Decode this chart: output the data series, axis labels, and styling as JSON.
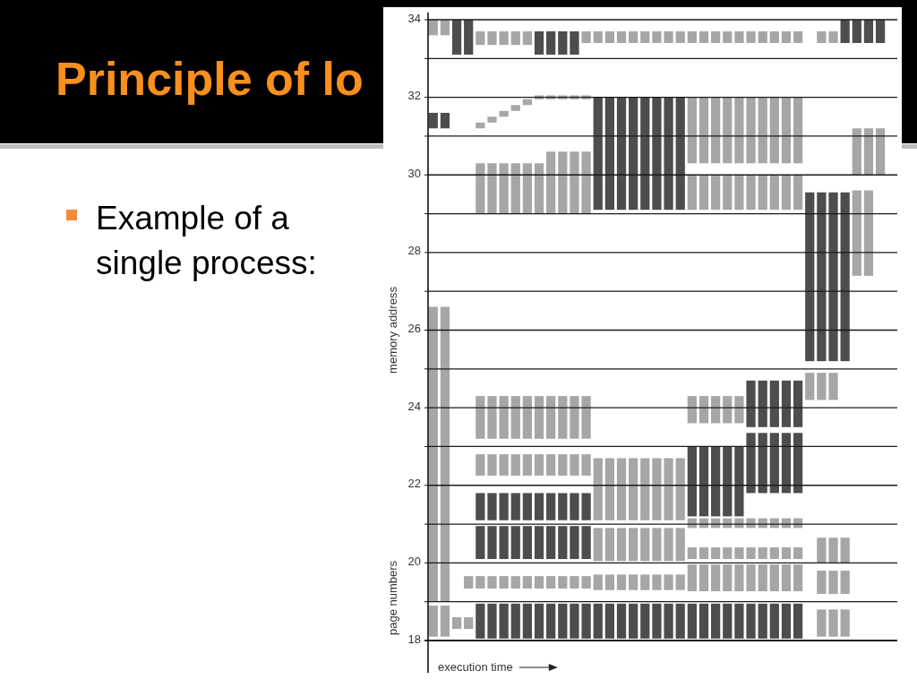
{
  "chart_data": {
    "type": "bar",
    "title": "Principle of lo",
    "subtitle": "Example of a single process:",
    "xlabel": "execution time",
    "ylabel": "memory address",
    "annotations": [
      "page numbers"
    ],
    "categories": [
      null,
      null,
      null,
      null,
      null,
      null,
      null,
      null,
      null,
      null,
      null,
      null,
      null,
      null,
      null,
      null,
      null,
      null,
      null,
      null,
      null,
      null,
      null,
      null,
      null,
      null,
      null,
      null,
      null,
      null,
      null,
      null,
      null,
      null,
      null,
      null,
      null,
      null,
      null,
      null
    ],
    "series": [
      {
        "color": "#4d4d4d",
        "values": [
          0.4,
          0.4,
          0.9,
          0.9,
          null,
          null,
          null,
          null,
          null,
          0.6,
          0.6,
          0.6,
          0.6,
          null,
          2.9,
          2.9,
          2.9,
          2.9,
          2.9,
          2.9,
          2.9,
          2.9,
          null,
          null,
          null,
          null,
          null,
          1.2,
          1.2,
          1.2,
          1.2,
          1.2,
          4.35,
          4.35,
          4.35,
          4.35,
          null,
          null,
          null,
          null
        ],
        "base": [
          31.2,
          31.2,
          33.1,
          33.1,
          null,
          null,
          null,
          null,
          null,
          33.1,
          33.1,
          33.1,
          33.1,
          null,
          29.1,
          29.1,
          29.1,
          29.1,
          29.1,
          29.1,
          29.1,
          29.1,
          null,
          null,
          null,
          null,
          null,
          23.5,
          23.5,
          23.5,
          23.5,
          23.5,
          25.2,
          25.2,
          25.2,
          25.2,
          null,
          null,
          null,
          null
        ]
      },
      {
        "color": "#4d4d4d",
        "values": [
          null,
          null,
          null,
          null,
          0.7,
          0.7,
          0.7,
          0.7,
          0.7,
          0.7,
          0.7,
          0.7,
          0.7,
          0.7,
          null,
          null,
          null,
          null,
          null,
          null,
          null,
          null,
          1.8,
          1.8,
          1.8,
          1.8,
          1.8,
          1.55,
          1.55,
          1.55,
          1.55,
          1.55,
          null,
          null,
          null,
          0.6,
          0.6,
          0.6,
          0.6,
          null
        ],
        "base": [
          null,
          null,
          null,
          null,
          21.1,
          21.1,
          21.1,
          21.1,
          21.1,
          21.1,
          21.1,
          21.1,
          21.1,
          21.1,
          null,
          null,
          null,
          null,
          null,
          null,
          null,
          null,
          21.2,
          21.2,
          21.2,
          21.2,
          21.2,
          21.8,
          21.8,
          21.8,
          21.8,
          21.8,
          null,
          null,
          null,
          33.4,
          33.4,
          33.4,
          33.4,
          null
        ]
      },
      {
        "color": "#4d4d4d",
        "values": [
          null,
          null,
          null,
          null,
          0.85,
          0.85,
          0.85,
          0.85,
          0.85,
          0.85,
          0.85,
          0.85,
          0.85,
          0.85,
          null,
          null,
          null,
          null,
          null,
          null,
          null,
          null,
          null,
          null,
          null,
          null,
          null,
          null,
          null,
          null,
          null,
          null,
          null,
          null,
          null,
          null,
          null,
          null,
          null,
          null
        ],
        "base": [
          null,
          null,
          null,
          null,
          20.1,
          20.1,
          20.1,
          20.1,
          20.1,
          20.1,
          20.1,
          20.1,
          20.1,
          20.1,
          null,
          null,
          null,
          null,
          null,
          null,
          null,
          null,
          null,
          null,
          null,
          null,
          null,
          null,
          null,
          null,
          null,
          null,
          null,
          null,
          null,
          null,
          null,
          null,
          null,
          null
        ]
      },
      {
        "color": "#4d4d4d",
        "values": [
          null,
          null,
          null,
          null,
          0.9,
          0.9,
          0.9,
          0.9,
          0.9,
          0.9,
          0.9,
          0.9,
          0.9,
          0.9,
          0.9,
          0.9,
          0.9,
          0.9,
          0.9,
          0.9,
          0.9,
          0.9,
          0.9,
          0.9,
          0.9,
          0.9,
          0.9,
          0.9,
          0.9,
          0.9,
          0.9,
          0.9,
          null,
          null,
          null,
          null,
          null,
          null,
          null,
          null
        ],
        "base": [
          null,
          null,
          null,
          null,
          18.05,
          18.05,
          18.05,
          18.05,
          18.05,
          18.05,
          18.05,
          18.05,
          18.05,
          18.05,
          18.05,
          18.05,
          18.05,
          18.05,
          18.05,
          18.05,
          18.05,
          18.05,
          18.05,
          18.05,
          18.05,
          18.05,
          18.05,
          18.05,
          18.05,
          18.05,
          18.05,
          18.05,
          null,
          null,
          null,
          null,
          null,
          null,
          null,
          null
        ]
      },
      {
        "color": "#a6a6a6",
        "values": [
          0.4,
          0.4,
          0.3,
          0.3,
          0.35,
          0.35,
          0.35,
          0.35,
          0.35,
          null,
          null,
          null,
          null,
          0.3,
          0.3,
          0.3,
          0.3,
          0.3,
          0.3,
          0.3,
          0.3,
          0.3,
          0.3,
          0.3,
          0.3,
          0.3,
          0.3,
          0.3,
          0.3,
          0.3,
          0.3,
          0.3,
          null,
          0.3,
          0.3,
          null,
          1.2,
          1.2,
          1.2,
          null
        ],
        "base": [
          33.6,
          33.6,
          18.3,
          18.3,
          33.35,
          33.35,
          33.35,
          33.35,
          33.35,
          null,
          null,
          null,
          null,
          33.4,
          33.4,
          33.4,
          33.4,
          33.4,
          33.4,
          33.4,
          33.4,
          33.4,
          33.4,
          33.4,
          33.4,
          33.4,
          33.4,
          33.4,
          33.4,
          33.4,
          33.4,
          33.4,
          null,
          33.4,
          33.4,
          null,
          30.0,
          30.0,
          30.0,
          null
        ]
      },
      {
        "color": "#a6a6a6",
        "values": [
          7.6,
          7.6,
          null,
          null,
          0.15,
          0.15,
          0.15,
          0.15,
          0.15,
          0.1,
          0.1,
          0.1,
          0.1,
          0.1,
          null,
          null,
          null,
          null,
          null,
          null,
          null,
          null,
          1.7,
          1.7,
          1.7,
          1.7,
          1.7,
          1.7,
          1.7,
          1.7,
          1.7,
          1.7,
          0.7,
          0.7,
          0.7,
          null,
          2.2,
          2.2,
          null,
          null
        ],
        "base": [
          19.0,
          19.0,
          null,
          null,
          31.2,
          31.35,
          31.5,
          31.65,
          31.8,
          31.95,
          31.95,
          31.95,
          31.95,
          31.95,
          null,
          null,
          null,
          null,
          null,
          null,
          null,
          null,
          30.3,
          30.3,
          30.3,
          30.3,
          30.3,
          30.3,
          30.3,
          30.3,
          30.3,
          30.3,
          24.2,
          24.2,
          24.2,
          null,
          27.4,
          27.4,
          null,
          null
        ]
      },
      {
        "color": "#a6a6a6",
        "values": [
          0.8,
          0.8,
          null,
          null,
          1.3,
          1.3,
          1.3,
          1.3,
          1.3,
          1.3,
          1.6,
          1.6,
          1.6,
          1.6,
          1.6,
          1.6,
          1.6,
          1.6,
          1.6,
          1.6,
          1.6,
          1.6,
          0.9,
          0.9,
          0.9,
          0.9,
          0.9,
          0.9,
          0.9,
          0.9,
          0.9,
          0.9,
          null,
          0.65,
          0.65,
          0.65,
          null,
          null,
          null,
          null
        ],
        "base": [
          18.1,
          18.1,
          null,
          null,
          29.0,
          29.0,
          29.0,
          29.0,
          29.0,
          29.0,
          29.0,
          29.0,
          29.0,
          29.0,
          21.1,
          21.1,
          21.1,
          21.1,
          21.1,
          21.1,
          21.1,
          21.1,
          29.1,
          29.1,
          29.1,
          29.1,
          29.1,
          29.1,
          29.1,
          29.1,
          29.1,
          29.1,
          null,
          20.0,
          20.0,
          20.0,
          null,
          null,
          null,
          null
        ]
      },
      {
        "color": "#a6a6a6",
        "values": [
          null,
          null,
          null,
          null,
          1.1,
          1.1,
          1.1,
          1.1,
          1.1,
          1.1,
          1.1,
          1.1,
          1.1,
          1.1,
          0.85,
          0.85,
          0.85,
          0.85,
          0.85,
          0.85,
          0.85,
          0.85,
          0.7,
          0.7,
          0.7,
          0.7,
          0.7,
          null,
          null,
          null,
          null,
          null,
          null,
          0.6,
          0.6,
          0.6,
          null,
          null,
          null,
          null
        ],
        "base": [
          null,
          null,
          null,
          null,
          23.2,
          23.2,
          23.2,
          23.2,
          23.2,
          23.2,
          23.2,
          23.2,
          23.2,
          23.2,
          20.05,
          20.05,
          20.05,
          20.05,
          20.05,
          20.05,
          20.05,
          20.05,
          23.6,
          23.6,
          23.6,
          23.6,
          23.6,
          null,
          null,
          null,
          null,
          null,
          null,
          19.2,
          19.2,
          19.2,
          null,
          null,
          null,
          null
        ]
      },
      {
        "color": "#a6a6a6",
        "values": [
          null,
          null,
          null,
          null,
          0.55,
          0.55,
          0.55,
          0.55,
          0.55,
          0.55,
          0.55,
          0.55,
          0.55,
          0.55,
          0.4,
          0.4,
          0.4,
          0.4,
          0.4,
          0.4,
          0.4,
          0.4,
          0.25,
          0.25,
          0.25,
          0.25,
          0.25,
          0.25,
          0.25,
          0.25,
          0.25,
          0.25,
          null,
          0.7,
          0.7,
          0.7,
          null,
          null,
          null,
          null
        ],
        "base": [
          null,
          null,
          null,
          null,
          22.25,
          22.25,
          22.25,
          22.25,
          22.25,
          22.25,
          22.25,
          22.25,
          22.25,
          22.25,
          19.3,
          19.3,
          19.3,
          19.3,
          19.3,
          19.3,
          19.3,
          19.3,
          20.9,
          20.9,
          20.9,
          20.9,
          20.9,
          20.9,
          20.9,
          20.9,
          20.9,
          20.9,
          null,
          18.1,
          18.1,
          18.1,
          null,
          null,
          null,
          null
        ]
      },
      {
        "color": "#a6a6a6",
        "values": [
          null,
          null,
          null,
          0.32,
          0.32,
          0.32,
          0.32,
          0.32,
          0.32,
          0.32,
          0.32,
          0.32,
          0.32,
          0.32,
          null,
          null,
          null,
          null,
          null,
          null,
          null,
          null,
          0.3,
          0.3,
          0.3,
          0.3,
          0.3,
          0.3,
          0.3,
          0.3,
          0.3,
          0.3,
          null,
          null,
          null,
          null,
          null,
          null,
          null,
          null
        ],
        "base": [
          null,
          null,
          null,
          19.34,
          19.34,
          19.34,
          19.34,
          19.34,
          19.34,
          19.34,
          19.34,
          19.34,
          19.34,
          19.34,
          null,
          null,
          null,
          null,
          null,
          null,
          null,
          null,
          20.1,
          20.1,
          20.1,
          20.1,
          20.1,
          20.1,
          20.1,
          20.1,
          20.1,
          20.1,
          null,
          null,
          null,
          null,
          null,
          null,
          null,
          null
        ]
      },
      {
        "color": "#a6a6a6",
        "values": [
          null,
          null,
          null,
          null,
          null,
          null,
          null,
          null,
          null,
          null,
          null,
          null,
          null,
          null,
          null,
          null,
          null,
          null,
          null,
          null,
          null,
          null,
          0.69,
          0.69,
          0.69,
          0.69,
          0.69,
          0.69,
          0.69,
          0.69,
          0.69,
          0.69,
          null,
          null,
          null,
          null,
          null,
          null,
          null,
          null
        ],
        "base": [
          null,
          null,
          null,
          null,
          null,
          null,
          null,
          null,
          null,
          null,
          null,
          null,
          null,
          null,
          null,
          null,
          null,
          null,
          null,
          null,
          null,
          null,
          19.27,
          19.27,
          19.27,
          19.27,
          19.27,
          19.27,
          19.27,
          19.27,
          19.27,
          19.27,
          null,
          null,
          null,
          null,
          null,
          null,
          null,
          null
        ]
      }
    ],
    "ylim": [
      18,
      34
    ],
    "yticks": [
      18,
      {
        "value": 19,
        "label": null
      },
      20,
      {
        "value": 21,
        "label": null
      },
      22,
      {
        "value": 23,
        "label": null
      },
      24,
      {
        "value": 25,
        "label": null
      },
      26,
      {
        "value": 27,
        "label": null
      },
      28,
      {
        "value": 29,
        "label": null
      },
      30,
      {
        "value": 31,
        "label": null
      },
      32,
      {
        "value": 33,
        "label": null
      },
      34
    ],
    "grid": "y",
    "tick_labels": "y"
  }
}
